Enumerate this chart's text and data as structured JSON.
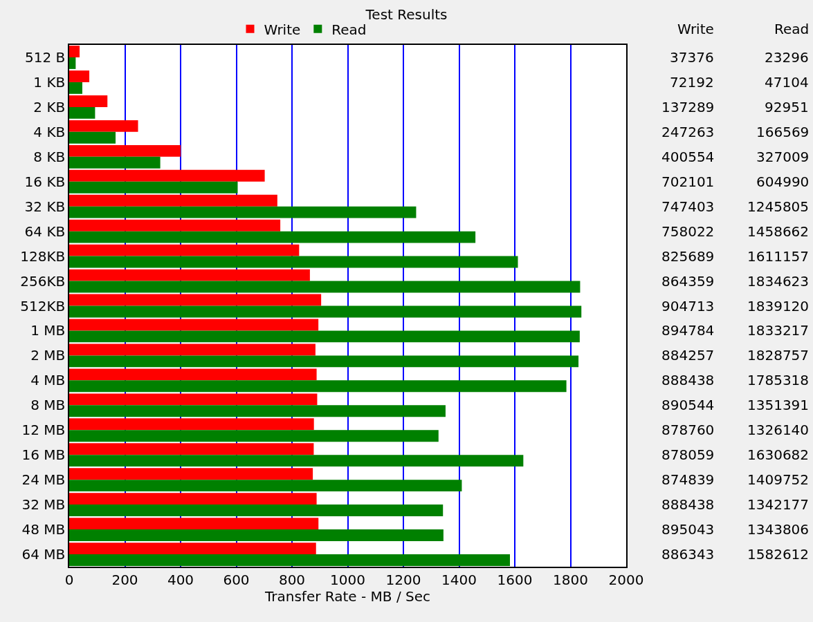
{
  "chart_data": {
    "type": "bar",
    "title": "Test Results",
    "orientation": "horizontal",
    "xlabel": "Transfer Rate - MB / Sec",
    "categories": [
      "512 B",
      "1 KB",
      "2 KB",
      "4 KB",
      "8 KB",
      "16 KB",
      "32 KB",
      "64 KB",
      "128KB",
      "256KB",
      "512KB",
      "1 MB",
      "2 MB",
      "4 MB",
      "8 MB",
      "12 MB",
      "16 MB",
      "24 MB",
      "32 MB",
      "48 MB",
      "64 MB"
    ],
    "series": [
      {
        "name": "Write",
        "color": "#ff0000",
        "values": [
          37.376,
          72.192,
          137.289,
          247.263,
          400.554,
          702.101,
          747.403,
          758.022,
          825.689,
          864.359,
          904.713,
          894.784,
          884.257,
          888.438,
          890.544,
          878.76,
          878.059,
          874.839,
          888.438,
          895.043,
          886.343
        ]
      },
      {
        "name": "Read",
        "color": "#008000",
        "values": [
          23.296,
          47.104,
          92.951,
          166.569,
          327.009,
          604.99,
          1245.805,
          1458.662,
          1611.157,
          1834.623,
          1839.12,
          1833.217,
          1828.757,
          1785.318,
          1351.391,
          1326.14,
          1630.682,
          1409.752,
          1342.177,
          1343.806,
          1582.612
        ]
      }
    ],
    "annotations": [
      "37376",
      "23296",
      "72192",
      "47104",
      "137289",
      "92951",
      "247263",
      "166569",
      "400554",
      "327009",
      "702101",
      "604990",
      "747403",
      "1245805",
      "758022",
      "1458662",
      "825689",
      "1611157",
      "864359",
      "1834623",
      "904713",
      "1839120",
      "894784",
      "1833217",
      "884257",
      "1828757",
      "888438",
      "1785318",
      "890544",
      "1351391",
      "878760",
      "1326140",
      "878059",
      "1630682",
      "874839",
      "1409752",
      "888438",
      "1342177",
      "895043",
      "1343806",
      "886343",
      "1582612"
    ],
    "xlim": [
      0,
      2000
    ],
    "xticks": [
      0,
      200,
      400,
      600,
      800,
      1000,
      1200,
      1400,
      1600,
      1800,
      2000
    ],
    "grid": "x",
    "legend": "top"
  }
}
